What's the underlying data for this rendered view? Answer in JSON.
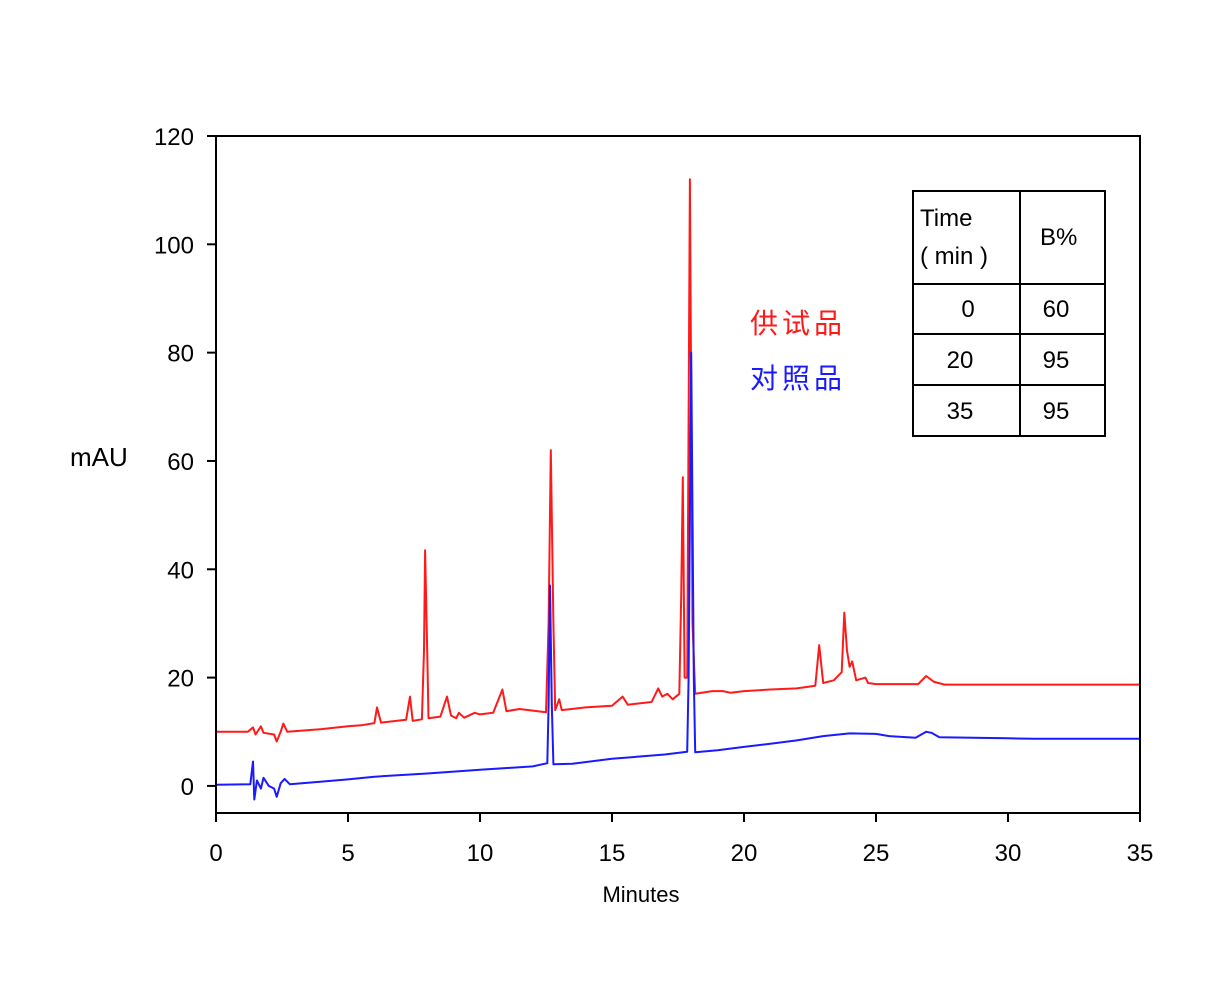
{
  "chart_data": {
    "type": "line",
    "xlabel": "Minutes",
    "ylabel": "mAU",
    "xlim": [
      0,
      35
    ],
    "ylim": [
      -5,
      120
    ],
    "xticks": [
      0,
      5,
      10,
      15,
      20,
      25,
      30,
      35
    ],
    "yticks": [
      0,
      20,
      40,
      60,
      80,
      100,
      120
    ],
    "grid": false,
    "colors": {
      "sample": "#ff1a1a",
      "reference": "#1a1aff"
    },
    "series": [
      {
        "name": "供试品",
        "color": "#ff1a1a",
        "points": [
          [
            0,
            10
          ],
          [
            1.2,
            10
          ],
          [
            1.4,
            10.8
          ],
          [
            1.5,
            9.5
          ],
          [
            1.7,
            11
          ],
          [
            1.8,
            9.8
          ],
          [
            2.2,
            9.5
          ],
          [
            2.3,
            8.2
          ],
          [
            2.45,
            10
          ],
          [
            2.55,
            11.5
          ],
          [
            2.7,
            10
          ],
          [
            4,
            10.5
          ],
          [
            5,
            11
          ],
          [
            5.5,
            11.2
          ],
          [
            6,
            11.6
          ],
          [
            6.1,
            14.5
          ],
          [
            6.25,
            11.7
          ],
          [
            7.2,
            12.2
          ],
          [
            7.35,
            16.5
          ],
          [
            7.45,
            12
          ],
          [
            7.8,
            12.3
          ],
          [
            7.88,
            25
          ],
          [
            7.92,
            43.5
          ],
          [
            8.0,
            25
          ],
          [
            8.05,
            12.5
          ],
          [
            8.5,
            12.8
          ],
          [
            8.75,
            16.5
          ],
          [
            8.9,
            13
          ],
          [
            9.1,
            12.5
          ],
          [
            9.2,
            13.5
          ],
          [
            9.4,
            12.6
          ],
          [
            9.8,
            13.5
          ],
          [
            10,
            13.2
          ],
          [
            10.5,
            13.5
          ],
          [
            10.85,
            17.8
          ],
          [
            11,
            13.8
          ],
          [
            11.5,
            14.2
          ],
          [
            12.5,
            13.6
          ],
          [
            12.6,
            30
          ],
          [
            12.68,
            62
          ],
          [
            12.78,
            30
          ],
          [
            12.85,
            14
          ],
          [
            13,
            16
          ],
          [
            13.1,
            14
          ],
          [
            14,
            14.5
          ],
          [
            15,
            14.8
          ],
          [
            15.4,
            16.5
          ],
          [
            15.6,
            15
          ],
          [
            16.5,
            15.5
          ],
          [
            16.75,
            18
          ],
          [
            16.9,
            16.5
          ],
          [
            17.1,
            17
          ],
          [
            17.3,
            16
          ],
          [
            17.55,
            17
          ],
          [
            17.62,
            35
          ],
          [
            17.68,
            57
          ],
          [
            17.75,
            20
          ],
          [
            17.85,
            20
          ],
          [
            17.95,
            112
          ],
          [
            18.05,
            30
          ],
          [
            18.15,
            17
          ],
          [
            18.8,
            17.5
          ],
          [
            19.2,
            17.5
          ],
          [
            19.5,
            17.2
          ],
          [
            20,
            17.5
          ],
          [
            21,
            17.8
          ],
          [
            22,
            18
          ],
          [
            22.7,
            18.5
          ],
          [
            22.85,
            26
          ],
          [
            23,
            19
          ],
          [
            23.4,
            19.5
          ],
          [
            23.7,
            21
          ],
          [
            23.8,
            32
          ],
          [
            23.9,
            25
          ],
          [
            24.0,
            22
          ],
          [
            24.1,
            23
          ],
          [
            24.25,
            19.5
          ],
          [
            24.6,
            20
          ],
          [
            24.7,
            19
          ],
          [
            25,
            18.8
          ],
          [
            26.6,
            18.8
          ],
          [
            26.9,
            20.3
          ],
          [
            27.2,
            19.2
          ],
          [
            27.6,
            18.7
          ],
          [
            35,
            18.7
          ]
        ]
      },
      {
        "name": "对照品",
        "color": "#1a1aff",
        "points": [
          [
            0,
            0.2
          ],
          [
            1.3,
            0.3
          ],
          [
            1.4,
            4.5
          ],
          [
            1.45,
            -2.5
          ],
          [
            1.55,
            1
          ],
          [
            1.7,
            -0.5
          ],
          [
            1.8,
            1.5
          ],
          [
            2,
            0
          ],
          [
            2.2,
            -0.5
          ],
          [
            2.3,
            -2
          ],
          [
            2.45,
            0.5
          ],
          [
            2.6,
            1.3
          ],
          [
            2.8,
            0.3
          ],
          [
            4,
            0.8
          ],
          [
            5,
            1.2
          ],
          [
            6,
            1.7
          ],
          [
            8,
            2.3
          ],
          [
            10,
            3
          ],
          [
            12,
            3.6
          ],
          [
            12.55,
            4.2
          ],
          [
            12.6,
            15
          ],
          [
            12.65,
            37
          ],
          [
            12.72,
            15
          ],
          [
            12.78,
            4
          ],
          [
            13.5,
            4.1
          ],
          [
            15,
            5
          ],
          [
            17,
            5.8
          ],
          [
            17.85,
            6.3
          ],
          [
            17.9,
            20
          ],
          [
            18.0,
            80
          ],
          [
            18.1,
            20
          ],
          [
            18.15,
            6.2
          ],
          [
            19,
            6.6
          ],
          [
            20,
            7.2
          ],
          [
            21,
            7.8
          ],
          [
            22,
            8.4
          ],
          [
            23,
            9.2
          ],
          [
            24,
            9.7
          ],
          [
            25,
            9.6
          ],
          [
            25.5,
            9.2
          ],
          [
            26.5,
            8.9
          ],
          [
            26.9,
            10
          ],
          [
            27.1,
            9.8
          ],
          [
            27.4,
            9
          ],
          [
            30,
            8.8
          ],
          [
            31,
            8.7
          ],
          [
            35,
            8.7
          ]
        ]
      }
    ],
    "legend_labels": [
      "供试品",
      "对照品"
    ],
    "legend_placement": "top-center",
    "gradient_table": {
      "header": [
        "Time\n( min )",
        "B%"
      ],
      "header_time_line1": "Time",
      "header_time_line2": "( min )",
      "header_b": "B%",
      "rows": [
        [
          "0",
          "60"
        ],
        [
          "20",
          "95"
        ],
        [
          "35",
          "95"
        ]
      ]
    }
  }
}
